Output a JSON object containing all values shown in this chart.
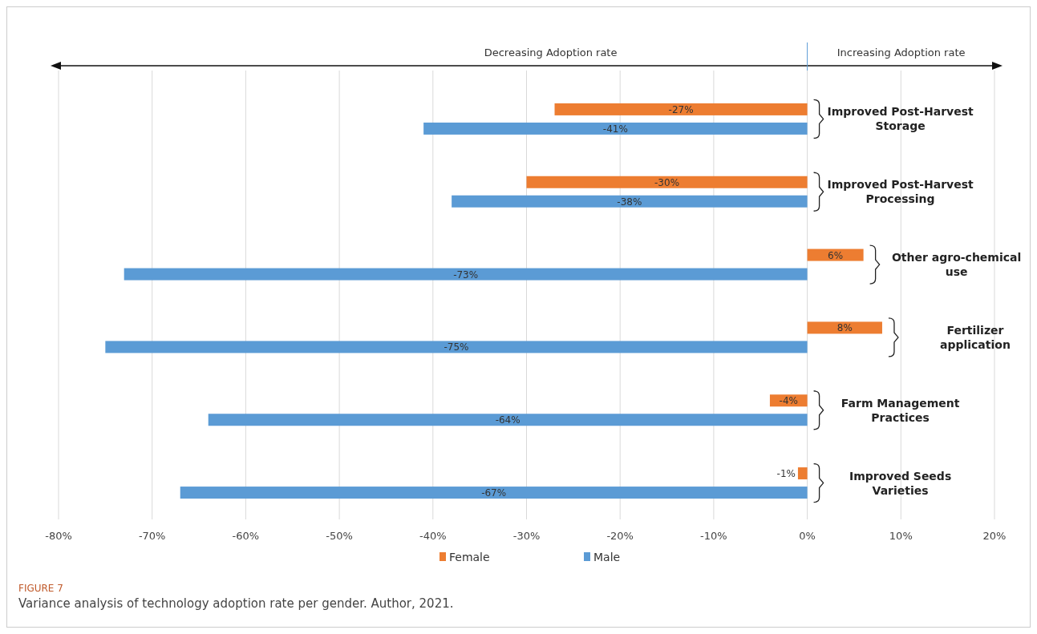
{
  "chart_data": {
    "type": "bar",
    "orientation": "horizontal",
    "categories": [
      "Improved Post-Harvest Storage",
      "Improved Post-Harvest Processing",
      "Other agro-chemical use",
      "Fertilizer application",
      "Farm Management Practices",
      "Improved Seeds Varieties"
    ],
    "series": [
      {
        "name": "Female",
        "color": "#ed7d31",
        "values": [
          -27,
          -30,
          6,
          8,
          -4,
          -1
        ],
        "value_labels": [
          "-27%",
          "-30%",
          "6%",
          "8%",
          "-4%",
          "-1%"
        ]
      },
      {
        "name": "Male",
        "color": "#5b9bd5",
        "values": [
          -41,
          -38,
          -73,
          -75,
          -64,
          -67
        ],
        "value_labels": [
          "-41%",
          "-38%",
          "-73%",
          "-75%",
          "-64%",
          "-67%"
        ]
      }
    ],
    "xlim": [
      -80,
      20
    ],
    "xticks": [
      {
        "value": -80,
        "label": "-80%"
      },
      {
        "value": -70,
        "label": "-70%"
      },
      {
        "value": -60,
        "label": "-60%"
      },
      {
        "value": -50,
        "label": "-50%"
      },
      {
        "value": -40,
        "label": "-40%"
      },
      {
        "value": -30,
        "label": "-30%"
      },
      {
        "value": -20,
        "label": "-20%"
      },
      {
        "value": -10,
        "label": "-10%"
      },
      {
        "value": 0,
        "label": "0%"
      },
      {
        "value": 10,
        "label": "10%"
      },
      {
        "value": 20,
        "label": "20%"
      }
    ],
    "grid": "x",
    "legend": "bottom",
    "annotations": [
      "Decreasing Adoption rate",
      "Increasing Adoption rate",
      "FIGURE 7",
      "Variance analysis of technology adoption rate per gender. Author, 2021."
    ]
  }
}
